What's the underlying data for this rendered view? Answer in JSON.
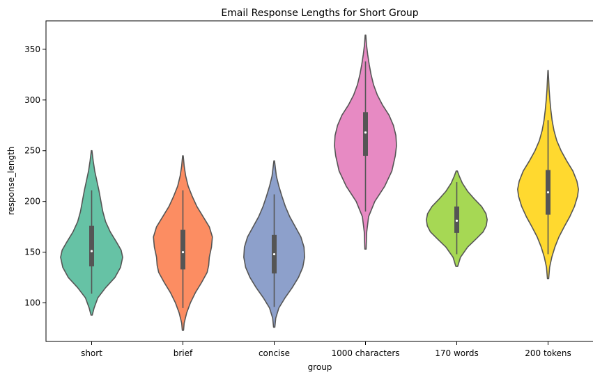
{
  "chart_data": {
    "type": "violin",
    "title": "Email Response Lengths for Short Group",
    "xlabel": "group",
    "ylabel": "response_length",
    "ylim": [
      62,
      378
    ],
    "yticks": [
      100,
      150,
      200,
      250,
      300,
      350
    ],
    "grid": false,
    "legend": "none",
    "colors": [
      "#66c2a5",
      "#fc8d62",
      "#8da0cb",
      "#e78ac3",
      "#a6d854",
      "#ffd92f"
    ],
    "line_color": "#555555",
    "categories": [
      "short",
      "brief",
      "concise",
      "1000 characters",
      "170 words",
      "200 tokens"
    ],
    "series": [
      {
        "category": "short",
        "min": 88,
        "max": 250,
        "whisker_low": 109,
        "q1": 136,
        "median": 151,
        "q3": 176,
        "whisker_high": 211,
        "profile": [
          [
            88,
            0.02
          ],
          [
            95,
            0.08
          ],
          [
            105,
            0.2
          ],
          [
            115,
            0.45
          ],
          [
            125,
            0.75
          ],
          [
            135,
            0.93
          ],
          [
            145,
            1.0
          ],
          [
            152,
            0.95
          ],
          [
            160,
            0.8
          ],
          [
            170,
            0.6
          ],
          [
            180,
            0.45
          ],
          [
            190,
            0.36
          ],
          [
            200,
            0.3
          ],
          [
            210,
            0.24
          ],
          [
            220,
            0.17
          ],
          [
            230,
            0.1
          ],
          [
            240,
            0.05
          ],
          [
            250,
            0.01
          ]
        ]
      },
      {
        "category": "brief",
        "min": 73,
        "max": 245,
        "whisker_low": 95,
        "q1": 133,
        "median": 150,
        "q3": 172,
        "whisker_high": 211,
        "profile": [
          [
            73,
            0.02
          ],
          [
            80,
            0.04
          ],
          [
            90,
            0.12
          ],
          [
            100,
            0.24
          ],
          [
            110,
            0.4
          ],
          [
            120,
            0.6
          ],
          [
            130,
            0.78
          ],
          [
            137,
            0.83
          ],
          [
            145,
            0.85
          ],
          [
            155,
            0.92
          ],
          [
            165,
            0.95
          ],
          [
            175,
            0.85
          ],
          [
            185,
            0.65
          ],
          [
            195,
            0.45
          ],
          [
            205,
            0.3
          ],
          [
            215,
            0.17
          ],
          [
            225,
            0.09
          ],
          [
            235,
            0.04
          ],
          [
            245,
            0.01
          ]
        ]
      },
      {
        "category": "concise",
        "min": 76,
        "max": 240,
        "whisker_low": 96,
        "q1": 129,
        "median": 148,
        "q3": 167,
        "whisker_high": 207,
        "profile": [
          [
            76,
            0.02
          ],
          [
            85,
            0.05
          ],
          [
            95,
            0.15
          ],
          [
            105,
            0.35
          ],
          [
            115,
            0.58
          ],
          [
            125,
            0.78
          ],
          [
            135,
            0.92
          ],
          [
            145,
            0.98
          ],
          [
            155,
            0.96
          ],
          [
            165,
            0.86
          ],
          [
            175,
            0.68
          ],
          [
            185,
            0.5
          ],
          [
            195,
            0.36
          ],
          [
            205,
            0.25
          ],
          [
            215,
            0.15
          ],
          [
            225,
            0.07
          ],
          [
            240,
            0.01
          ]
        ]
      },
      {
        "category": "1000 characters",
        "min": 153,
        "max": 364,
        "whisker_low": 190,
        "q1": 245,
        "median": 268,
        "q3": 288,
        "whisker_high": 338,
        "profile": [
          [
            153,
            0.02
          ],
          [
            170,
            0.04
          ],
          [
            185,
            0.1
          ],
          [
            200,
            0.3
          ],
          [
            215,
            0.62
          ],
          [
            230,
            0.85
          ],
          [
            245,
            0.96
          ],
          [
            255,
            1.0
          ],
          [
            265,
            0.98
          ],
          [
            275,
            0.9
          ],
          [
            285,
            0.76
          ],
          [
            295,
            0.55
          ],
          [
            305,
            0.38
          ],
          [
            315,
            0.26
          ],
          [
            325,
            0.18
          ],
          [
            335,
            0.12
          ],
          [
            345,
            0.07
          ],
          [
            355,
            0.03
          ],
          [
            364,
            0.01
          ]
        ]
      },
      {
        "category": "170 words",
        "min": 136,
        "max": 230,
        "whisker_low": 148,
        "q1": 169,
        "median": 181,
        "q3": 195,
        "whisker_high": 219,
        "profile": [
          [
            136,
            0.03
          ],
          [
            145,
            0.12
          ],
          [
            155,
            0.35
          ],
          [
            163,
            0.62
          ],
          [
            170,
            0.85
          ],
          [
            176,
            0.95
          ],
          [
            182,
            0.98
          ],
          [
            188,
            0.94
          ],
          [
            195,
            0.8
          ],
          [
            203,
            0.55
          ],
          [
            210,
            0.35
          ],
          [
            218,
            0.18
          ],
          [
            225,
            0.08
          ],
          [
            230,
            0.02
          ]
        ]
      },
      {
        "category": "200 tokens",
        "min": 124,
        "max": 329,
        "whisker_low": 148,
        "q1": 187,
        "median": 209,
        "q3": 231,
        "whisker_high": 280,
        "profile": [
          [
            124,
            0.02
          ],
          [
            135,
            0.05
          ],
          [
            145,
            0.12
          ],
          [
            155,
            0.22
          ],
          [
            165,
            0.35
          ],
          [
            175,
            0.52
          ],
          [
            185,
            0.7
          ],
          [
            195,
            0.85
          ],
          [
            205,
            0.95
          ],
          [
            212,
            0.98
          ],
          [
            220,
            0.93
          ],
          [
            230,
            0.8
          ],
          [
            240,
            0.6
          ],
          [
            250,
            0.42
          ],
          [
            260,
            0.28
          ],
          [
            270,
            0.19
          ],
          [
            280,
            0.13
          ],
          [
            290,
            0.09
          ],
          [
            300,
            0.06
          ],
          [
            310,
            0.035
          ],
          [
            320,
            0.02
          ],
          [
            329,
            0.005
          ]
        ]
      }
    ]
  }
}
